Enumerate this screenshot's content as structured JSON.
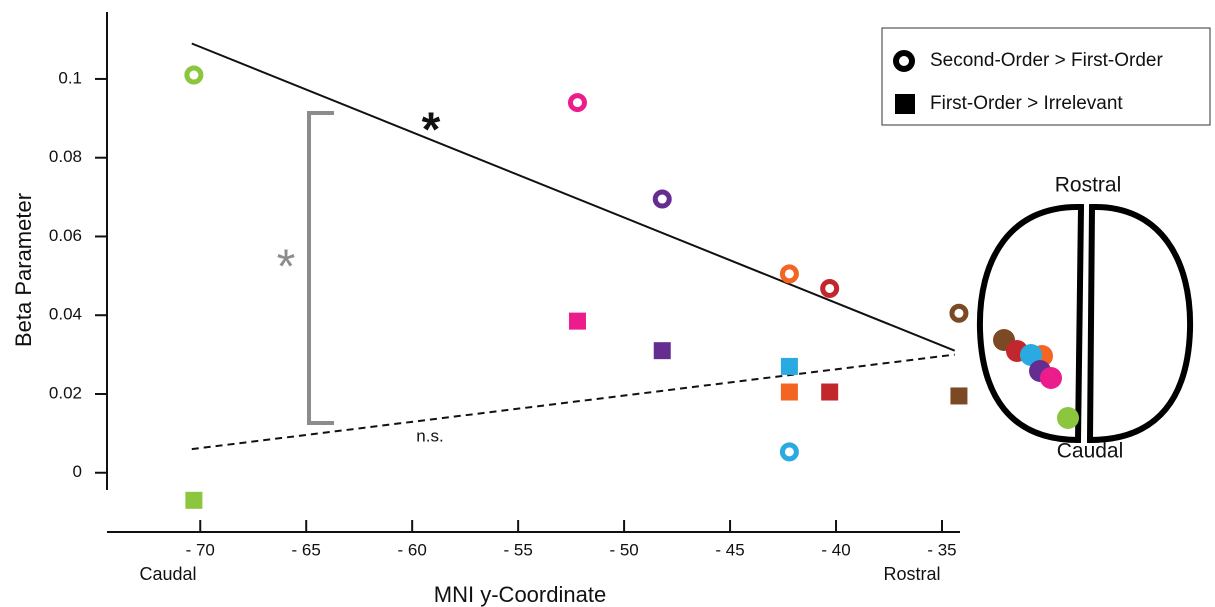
{
  "chart_data": {
    "type": "scatter",
    "x_label": "MNI y-Coordinate",
    "y_label": "Beta Parameter",
    "x_end_labels": [
      "Caudal",
      "Rostral"
    ],
    "xlim": [
      -74.4,
      -34.15
    ],
    "ylim": [
      -0.012,
      0.117
    ],
    "xticks": [
      {
        "value": -70,
        "label": "- 70"
      },
      {
        "value": -65,
        "label": "- 65"
      },
      {
        "value": -60,
        "label": "- 60"
      },
      {
        "value": -55,
        "label": "- 55"
      },
      {
        "value": -50,
        "label": "- 50"
      },
      {
        "value": -45,
        "label": "- 45"
      },
      {
        "value": -40,
        "label": "- 40"
      },
      {
        "value": -35,
        "label": "- 35"
      }
    ],
    "yticks": [
      0,
      0.02,
      0.04,
      0.06,
      0.08,
      0.1
    ],
    "series": [
      {
        "name": "Second-Order > First-Order",
        "marker": "ring",
        "x": [
          -70.3,
          -52.2,
          -48.2,
          -42.2,
          -40.3,
          -34.2,
          -42.2
        ],
        "values": [
          0.101,
          0.094,
          0.0695,
          0.0505,
          0.0468,
          0.0405,
          0.0053
        ],
        "colors": [
          "#8cc63f",
          "#ec1c8c",
          "#662d91",
          "#f26522",
          "#c1272d",
          "#7b4a24",
          "#29abe2"
        ]
      },
      {
        "name": "First-Order > Irrelevant",
        "marker": "square",
        "x": [
          -70.3,
          -52.2,
          -48.2,
          -42.2,
          -42.2,
          -40.3,
          -34.2
        ],
        "values": [
          -0.007,
          0.0385,
          0.031,
          0.027,
          0.0205,
          0.0205,
          0.0195
        ],
        "colors": [
          "#8cc63f",
          "#ec1c8c",
          "#662d91",
          "#29abe2",
          "#f26522",
          "#c1272d",
          "#7b4a24"
        ]
      }
    ],
    "trend_lines": [
      {
        "x": [
          -70.4,
          -34.4
        ],
        "values": [
          0.109,
          0.031
        ],
        "dash": false,
        "annotation": "*"
      },
      {
        "x": [
          -70.4,
          -34.4
        ],
        "values": [
          0.006,
          0.03
        ],
        "dash": true,
        "annotation": "n.s."
      }
    ],
    "bracket_annotation": "*",
    "inset": {
      "top_label": "Rostral",
      "bottom_label": "Caudal"
    }
  }
}
